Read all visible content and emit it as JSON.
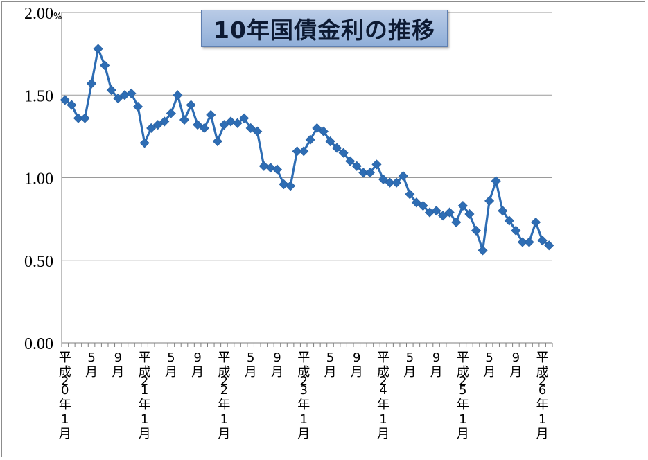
{
  "chart_data": {
    "type": "line",
    "title": "10年国債金利の推移",
    "y_unit": "%",
    "ylim": [
      0,
      2.0
    ],
    "yticks": [
      "0.00",
      "0.50",
      "1.00",
      "1.50",
      "2.00"
    ],
    "grid": true,
    "legend": "none",
    "x_tick_labels": [
      {
        "index": 0,
        "label": "平成20年1月"
      },
      {
        "index": 4,
        "label": "5月"
      },
      {
        "index": 8,
        "label": "9月"
      },
      {
        "index": 12,
        "label": "平成21年1月"
      },
      {
        "index": 16,
        "label": "5月"
      },
      {
        "index": 20,
        "label": "9月"
      },
      {
        "index": 24,
        "label": "平成22年1月"
      },
      {
        "index": 28,
        "label": "5月"
      },
      {
        "index": 32,
        "label": "9月"
      },
      {
        "index": 36,
        "label": "平成23年1月"
      },
      {
        "index": 40,
        "label": "5月"
      },
      {
        "index": 44,
        "label": "9月"
      },
      {
        "index": 48,
        "label": "平成24年1月"
      },
      {
        "index": 52,
        "label": "5月"
      },
      {
        "index": 56,
        "label": "9月"
      },
      {
        "index": 60,
        "label": "平成25年1月"
      },
      {
        "index": 64,
        "label": "5月"
      },
      {
        "index": 68,
        "label": "9月"
      },
      {
        "index": 72,
        "label": "平成26年1月"
      }
    ],
    "series": [
      {
        "color": "#2e6db4",
        "values": [
          1.47,
          1.44,
          1.36,
          1.36,
          1.57,
          1.78,
          1.68,
          1.53,
          1.48,
          1.5,
          1.51,
          1.43,
          1.21,
          1.3,
          1.32,
          1.34,
          1.39,
          1.5,
          1.35,
          1.44,
          1.32,
          1.3,
          1.38,
          1.22,
          1.32,
          1.34,
          1.33,
          1.36,
          1.3,
          1.28,
          1.07,
          1.06,
          1.05,
          0.96,
          0.95,
          1.16,
          1.16,
          1.23,
          1.3,
          1.28,
          1.22,
          1.18,
          1.15,
          1.1,
          1.07,
          1.03,
          1.03,
          1.08,
          0.99,
          0.97,
          0.97,
          1.01,
          0.9,
          0.85,
          0.83,
          0.79,
          0.8,
          0.77,
          0.79,
          0.73,
          0.83,
          0.78,
          0.68,
          0.56,
          0.86,
          0.98,
          0.8,
          0.74,
          0.68,
          0.61,
          0.61,
          0.73,
          0.62,
          0.59
        ]
      }
    ]
  }
}
